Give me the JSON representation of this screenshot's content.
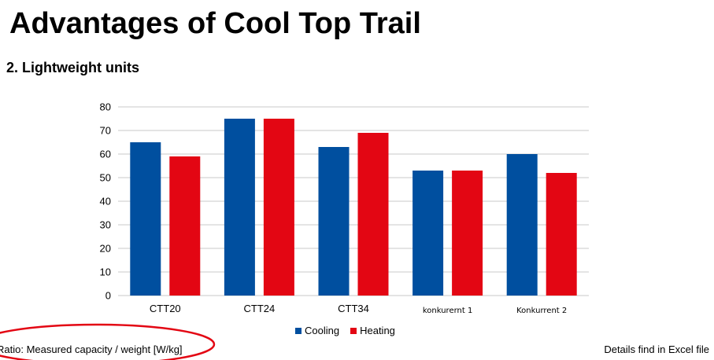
{
  "slide": {
    "title": "Advantages of Cool Top Trail",
    "subtitle": "2. Lightweight units",
    "footer_left": "Ratio: Measured capacity / weight [W/kg]",
    "footer_right": "Details find in Excel file"
  },
  "colors": {
    "cooling": "#004f9f",
    "heating": "#e30613",
    "grid": "#c8c8c8",
    "highlight": "#e30613"
  },
  "chart_data": {
    "type": "bar",
    "categories": [
      "CTT20",
      "CTT24",
      "CTT34",
      "konkurernt 1",
      "Konkurrent 2"
    ],
    "series": [
      {
        "name": "Cooling",
        "values": [
          65,
          75,
          63,
          53,
          60
        ]
      },
      {
        "name": "Heating",
        "values": [
          59,
          75,
          69,
          53,
          52
        ]
      }
    ],
    "ylim": [
      0,
      80
    ],
    "yticks": [
      0,
      10,
      20,
      30,
      40,
      50,
      60,
      70,
      80
    ],
    "grid": true,
    "legend_position": "bottom"
  }
}
